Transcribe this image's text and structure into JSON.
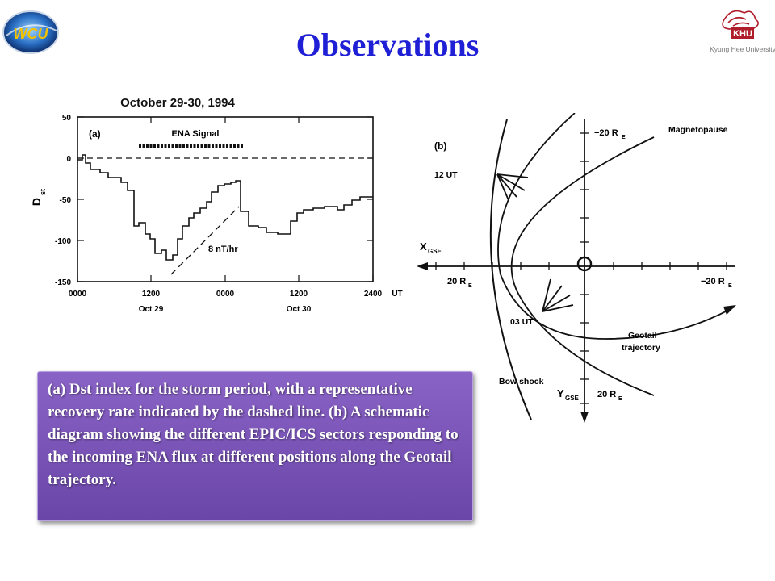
{
  "title": "Observations",
  "logos": {
    "left": {
      "text": "WCU",
      "icon": "wcu-logo-icon"
    },
    "right": {
      "badge": "KHU",
      "caption": "Kyung Hee University",
      "icon": "khu-emblem-icon"
    }
  },
  "figure_a": {
    "title": "October  29-30,  1994",
    "panel_label": "(a)",
    "signal_label": "ENA Signal",
    "ylabel": "D",
    "ylabel_sub": "st",
    "rate_label": "8  nT/hr",
    "y_ticks": [
      "50",
      "0",
      "-50",
      "-100",
      "-150"
    ],
    "x_ticks": [
      "0000",
      "1200",
      "0000",
      "1200",
      "2400"
    ],
    "x_unit": "UT",
    "date_labels": [
      "Oct 29",
      "Oct 30"
    ]
  },
  "figure_b": {
    "panel_label": "(b)",
    "magnetopause": "Magnetopause",
    "bow_shock": "Bow shock",
    "time_12": "12 UT",
    "time_03": "03 UT",
    "geotail_1": "Geotail",
    "geotail_2": "trajectory",
    "x_axis": "X",
    "x_axis_sub": "GSE",
    "y_axis": "Y",
    "y_axis_sub": "GSE",
    "re_top": "−20 R",
    "re_left": "20 R",
    "re_right": "−20 R",
    "re_bottom": "20 R",
    "re_sub": "E"
  },
  "caption": "(a) Dst index for the storm period, with a representative recovery rate indicated by the dashed line. (b) A schematic diagram showing the different EPIC/ICS sectors responding to the incoming ENA flux at different positions along the Geotail trajectory.",
  "colors": {
    "title": "#1f1fd6",
    "caption_bg": "#7a55b8",
    "caption_text": "#ffffff"
  }
}
